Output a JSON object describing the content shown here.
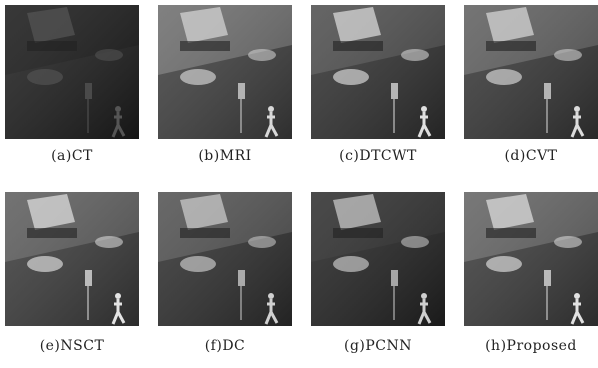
{
  "figure": {
    "panels": [
      {
        "label": "(a)CT"
      },
      {
        "label": "(b)MRI"
      },
      {
        "label": "(c)DTCWT"
      },
      {
        "label": "(d)CVT"
      },
      {
        "label": "(e)NSCT"
      },
      {
        "label": "(f)DC"
      },
      {
        "label": "(g)PCNN"
      },
      {
        "label": "(h)Proposed"
      }
    ]
  }
}
